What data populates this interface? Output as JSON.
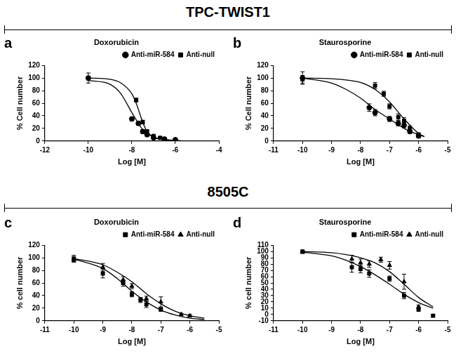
{
  "sections": [
    {
      "title": "TPC-TWIST1"
    },
    {
      "title": "8505C"
    }
  ],
  "chart_data": [
    {
      "type": "scatter",
      "panel_label": "a",
      "title": "Doxorubicin",
      "x_label": "Log [M]",
      "y_label": "% Cell number",
      "xlim": [
        -12,
        -4
      ],
      "xticks": [
        -12,
        -10,
        -8,
        -6,
        -4
      ],
      "ylim": [
        0,
        120
      ],
      "yticks": [
        0,
        20,
        40,
        60,
        80,
        100,
        120
      ],
      "grid": false,
      "legend": "top-right",
      "series": [
        {
          "name": "Anti-miR-584",
          "color": "#000000",
          "marker": "circle",
          "x": [
            -10,
            -8,
            -7.7,
            -7.5,
            -7.3,
            -7,
            -6.5,
            -6
          ],
          "values": [
            100,
            35,
            28,
            15,
            10,
            5,
            3,
            2
          ],
          "errors": [
            3,
            3,
            3,
            3,
            2,
            2,
            2,
            2
          ],
          "curve_x": [
            -10,
            -9,
            -8.5,
            -8,
            -7.7,
            -7.5,
            -7,
            -6,
            -5.5
          ],
          "curve_y": [
            96,
            90,
            75,
            45,
            28,
            18,
            6,
            1,
            0
          ]
        },
        {
          "name": "Anti-null",
          "color": "#000000",
          "marker": "square",
          "x": [
            -10,
            -7.8,
            -7.5,
            -7.3,
            -7,
            -6.7,
            -6.5
          ],
          "values": [
            100,
            65,
            30,
            15,
            8,
            5,
            3
          ],
          "errors": [
            8,
            3,
            3,
            3,
            2,
            2,
            2
          ],
          "curve_x": [
            -10,
            -9,
            -8.5,
            -8,
            -7.8,
            -7.5,
            -7.3,
            -7,
            -6.5,
            -6
          ],
          "curve_y": [
            100,
            98,
            92,
            75,
            60,
            30,
            15,
            6,
            2,
            1
          ]
        }
      ]
    },
    {
      "type": "scatter",
      "panel_label": "b",
      "title": "Staurosporine",
      "x_label": "Log [M]",
      "y_label": "% Cell number",
      "xlim": [
        -11,
        -5
      ],
      "xticks": [
        -11,
        -10,
        -9,
        -8,
        -7,
        -6,
        -5
      ],
      "ylim": [
        0,
        120
      ],
      "yticks": [
        0,
        20,
        40,
        60,
        80,
        100,
        120
      ],
      "grid": false,
      "legend": "top-right",
      "series": [
        {
          "name": "Anti-miR-584",
          "color": "#000000",
          "marker": "circle",
          "x": [
            -10,
            -7.7,
            -7.5,
            -7,
            -6.7,
            -6.5,
            -6.3,
            -6
          ],
          "values": [
            100,
            53,
            45,
            35,
            28,
            25,
            15,
            8
          ],
          "errors": [
            10,
            6,
            5,
            4,
            4,
            4,
            3,
            3
          ],
          "curve_x": [
            -10,
            -9,
            -8.5,
            -8,
            -7.5,
            -7,
            -6.5,
            -6,
            -5.8
          ],
          "curve_y": [
            100,
            92,
            82,
            68,
            50,
            35,
            20,
            10,
            7
          ]
        },
        {
          "name": "Anti-null",
          "color": "#000000",
          "marker": "square",
          "x": [
            -10,
            -7.5,
            -7.2,
            -7,
            -6.7,
            -6.5,
            -6.3,
            -6
          ],
          "values": [
            98,
            88,
            75,
            55,
            38,
            32,
            20,
            10
          ],
          "errors": [
            6,
            5,
            4,
            4,
            5,
            5,
            4,
            3
          ],
          "curve_x": [
            -10,
            -9,
            -8.5,
            -8,
            -7.5,
            -7,
            -6.5,
            -6,
            -5.8
          ],
          "curve_y": [
            100,
            99,
            97,
            93,
            82,
            62,
            35,
            12,
            7
          ]
        }
      ]
    },
    {
      "type": "scatter",
      "panel_label": "c",
      "title": "Doxorubicin",
      "x_label": "Log [M]",
      "y_label": "% cell number",
      "xlim": [
        -11,
        -5
      ],
      "xticks": [
        -11,
        -10,
        -9,
        -8,
        -7,
        -6,
        -5
      ],
      "ylim": [
        0,
        120
      ],
      "yticks": [
        0,
        20,
        40,
        60,
        80,
        100,
        120
      ],
      "grid": false,
      "legend": "top-right",
      "series": [
        {
          "name": "Anti-miR-584",
          "color": "#000000",
          "marker": "square",
          "x": [
            -10,
            -9,
            -8.3,
            -8,
            -7.7,
            -7.5,
            -7
          ],
          "values": [
            99,
            75,
            60,
            42,
            33,
            26,
            18
          ],
          "errors": [
            5,
            7,
            5,
            4,
            4,
            5,
            3
          ],
          "curve_x": [
            -10,
            -9,
            -8.5,
            -8,
            -7.5,
            -7,
            -6.5,
            -6,
            -5.5
          ],
          "curve_y": [
            98,
            83,
            67,
            47,
            30,
            17,
            9,
            4,
            2
          ]
        },
        {
          "name": "Anti-null",
          "color": "#000000",
          "marker": "triangle",
          "x": [
            -10,
            -9,
            -8.3,
            -8,
            -7.5,
            -7,
            -6.3,
            -6
          ],
          "values": [
            97,
            85,
            65,
            55,
            35,
            30,
            10,
            8
          ],
          "errors": [
            4,
            6,
            5,
            4,
            4,
            8,
            2,
            2
          ],
          "curve_x": [
            -10,
            -9,
            -8.5,
            -8,
            -7.5,
            -7,
            -6.5,
            -6,
            -5.5
          ],
          "curve_y": [
            99,
            89,
            77,
            62,
            43,
            27,
            15,
            8,
            4
          ]
        }
      ]
    },
    {
      "type": "scatter",
      "panel_label": "d",
      "title": "Staurosporine",
      "x_label": "Log [M]",
      "y_label": "% cell number",
      "xlim": [
        -11,
        -5
      ],
      "xticks": [
        -11,
        -10,
        -9,
        -8,
        -7,
        -6,
        -5
      ],
      "ylim": [
        -10,
        110
      ],
      "yticks": [
        -10,
        0,
        10,
        20,
        30,
        40,
        50,
        60,
        70,
        80,
        90,
        100,
        110
      ],
      "grid": false,
      "legend": "top-right",
      "series": [
        {
          "name": "Anti-miR-584",
          "color": "#000000",
          "marker": "square",
          "x": [
            -10,
            -8.3,
            -8,
            -7.7,
            -7,
            -6.5,
            -6,
            -5.5
          ],
          "values": [
            100,
            75,
            72,
            65,
            57,
            30,
            8,
            -2
          ],
          "errors": [
            2,
            8,
            6,
            6,
            4,
            5,
            3,
            2
          ],
          "curve_x": [
            -10,
            -9,
            -8.5,
            -8,
            -7.5,
            -7,
            -6.5,
            -6,
            -5.5
          ],
          "curve_y": [
            99,
            93,
            86,
            76,
            63,
            48,
            32,
            19,
            10
          ]
        },
        {
          "name": "Anti-null",
          "color": "#000000",
          "marker": "triangle",
          "x": [
            -10,
            -8.3,
            -8,
            -7.7,
            -7.3,
            -7,
            -6.5,
            -6
          ],
          "values": [
            99,
            88,
            82,
            80,
            87,
            78,
            52,
            12
          ],
          "errors": [
            2,
            6,
            6,
            5,
            4,
            6,
            12,
            3
          ],
          "curve_x": [
            -10,
            -9,
            -8.5,
            -8,
            -7.5,
            -7,
            -6.5,
            -6,
            -5.5
          ],
          "curve_y": [
            100,
            98,
            95,
            90,
            82,
            68,
            48,
            27,
            12
          ]
        }
      ]
    }
  ]
}
